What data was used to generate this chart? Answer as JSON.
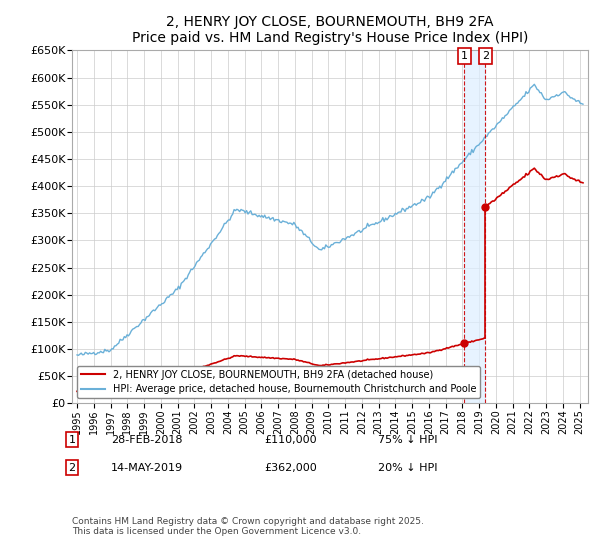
{
  "title": "2, HENRY JOY CLOSE, BOURNEMOUTH, BH9 2FA",
  "subtitle": "Price paid vs. HM Land Registry's House Price Index (HPI)",
  "ylim": [
    0,
    650000
  ],
  "yticks": [
    0,
    50000,
    100000,
    150000,
    200000,
    250000,
    300000,
    350000,
    400000,
    450000,
    500000,
    550000,
    600000,
    650000
  ],
  "xlim_start": 1994.7,
  "xlim_end": 2025.5,
  "hpi_color": "#6ab0d8",
  "property_color": "#cc0000",
  "dashed_color": "#cc0000",
  "shade_color": "#ddeeff",
  "legend_property": "2, HENRY JOY CLOSE, BOURNEMOUTH, BH9 2FA (detached house)",
  "legend_hpi": "HPI: Average price, detached house, Bournemouth Christchurch and Poole",
  "transaction1_date": "28-FEB-2018",
  "transaction1_price": 110000,
  "transaction1_pct": "75% ↓ HPI",
  "transaction1_year": 2018.12,
  "transaction2_date": "14-MAY-2019",
  "transaction2_price": 362000,
  "transaction2_pct": "20% ↓ HPI",
  "transaction2_year": 2019.37,
  "footnote": "Contains HM Land Registry data © Crown copyright and database right 2025.\nThis data is licensed under the Open Government Licence v3.0.",
  "background_color": "#ffffff",
  "grid_color": "#cccccc"
}
